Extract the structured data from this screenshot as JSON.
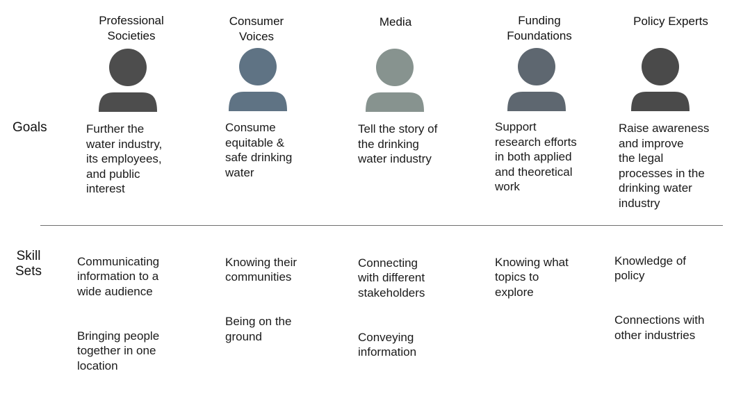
{
  "row_labels": {
    "goals": "Goals",
    "skill_sets": "Skill\nSets"
  },
  "stakeholders": [
    {
      "title": "Professional\nSocieties",
      "icon": "person-icon",
      "color": "#4d4d4d",
      "goal": "Further the\nwater industry,\nits employees,\nand public\ninterest",
      "skills": [
        "Communicating\ninformation to a\nwide audience",
        "Bringing people\ntogether in one\nlocation"
      ]
    },
    {
      "title": "Consumer\nVoices",
      "icon": "person-icon",
      "color": "#5f7384",
      "goal": "Consume\nequitable &\nsafe drinking\nwater",
      "skills": [
        "Knowing their\ncommunities",
        "Being on the\nground"
      ]
    },
    {
      "title": "Media",
      "icon": "person-icon",
      "color": "#87938f",
      "goal": "Tell the story of\nthe drinking\nwater industry",
      "skills": [
        "Connecting\nwith different\nstakeholders",
        "Conveying\ninformation"
      ]
    },
    {
      "title": "Funding\nFoundations",
      "icon": "person-icon",
      "color": "#5e6770",
      "goal": "Support\nresearch efforts\nin both applied\nand theoretical\nwork",
      "skills": [
        "Knowing what\ntopics to\nexplore"
      ]
    },
    {
      "title": "Policy Experts",
      "icon": "person-icon",
      "color": "#4a4a4a",
      "goal": "Raise awareness\nand improve\nthe legal\nprocesses in the\ndrinking water\nindustry",
      "skills": [
        "Knowledge of\npolicy",
        "Connections with\nother industries"
      ]
    }
  ]
}
